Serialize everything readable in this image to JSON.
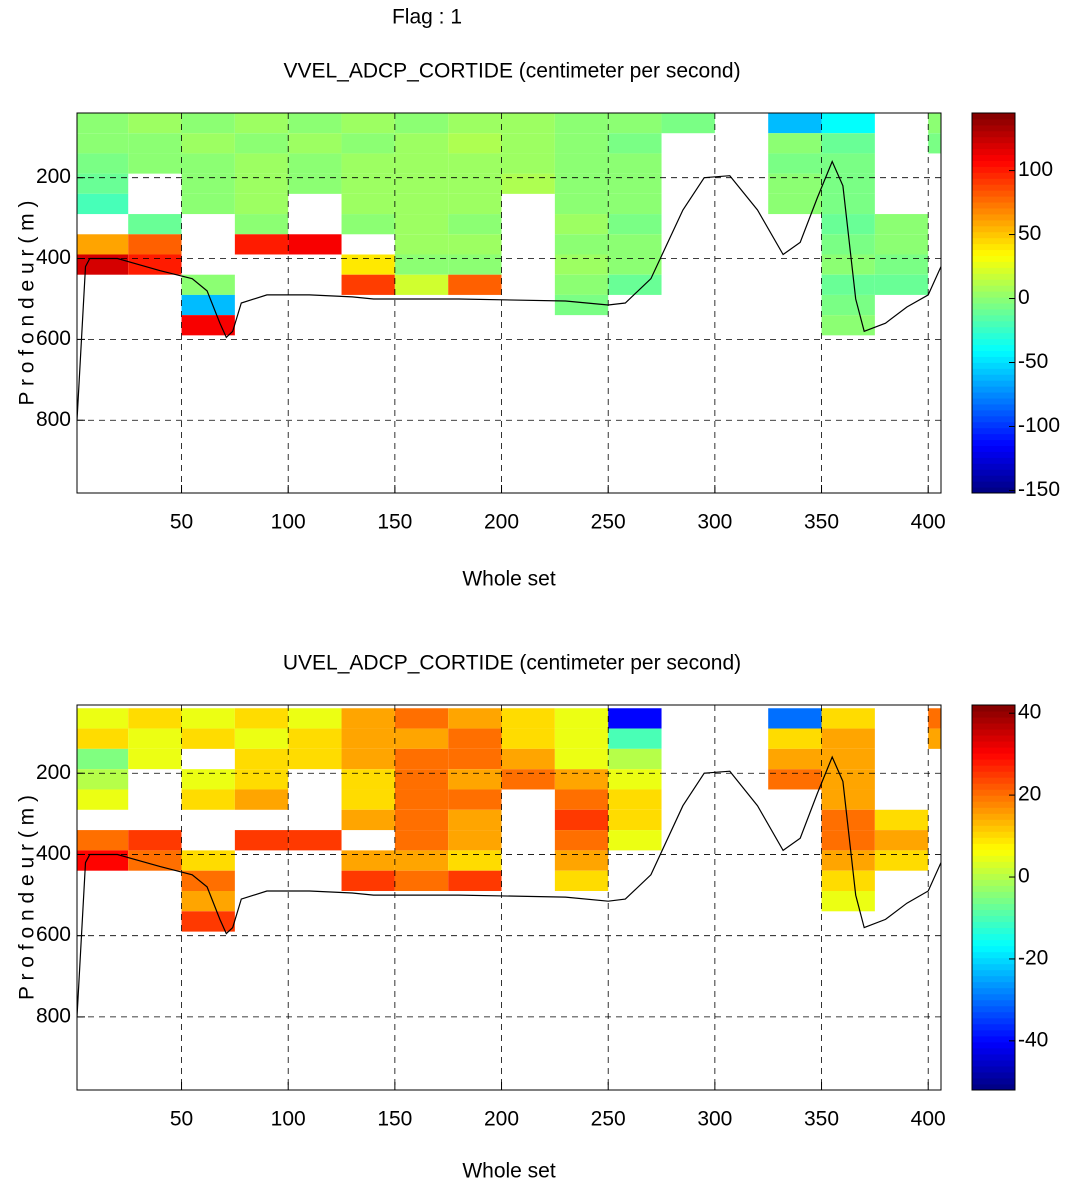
{
  "chart_data": [
    {
      "type": "heatmap",
      "suptitle": "Flag : 1",
      "title": "VVEL_ADCP_CORTIDE (centimeter per second)",
      "xlabel": "Whole set",
      "ylabel": "P r o f o n d e u r   ( m )",
      "xlim": [
        1,
        406
      ],
      "xticks": [
        50,
        100,
        150,
        200,
        250,
        300,
        350,
        400
      ],
      "ylim": [
        40,
        980
      ],
      "y_inverted": true,
      "yticks": [
        200,
        400,
        600,
        800
      ],
      "grid": true,
      "colormap": "jet",
      "clim": [
        -152,
        145
      ],
      "cticks": [
        -150,
        -100,
        -50,
        0,
        50,
        100
      ],
      "cells": {
        "x_edges": [
          0,
          25,
          50,
          75,
          100,
          125,
          150,
          175,
          200,
          225,
          250,
          275,
          300,
          325,
          350,
          375,
          400,
          425
        ],
        "y_edges": [
          40,
          90,
          140,
          190,
          240,
          290,
          340,
          390,
          440,
          490,
          540,
          590
        ],
        "values": [
          [
            0,
            5,
            0,
            5,
            0,
            5,
            0,
            5,
            5,
            0,
            0,
            -5,
            null,
            -60,
            -40,
            null,
            0
          ],
          [
            0,
            0,
            5,
            0,
            5,
            0,
            5,
            10,
            5,
            0,
            -5,
            null,
            null,
            0,
            -10,
            null,
            -5
          ],
          [
            -5,
            0,
            0,
            5,
            0,
            5,
            5,
            5,
            5,
            0,
            0,
            null,
            null,
            -5,
            -5,
            null,
            null
          ],
          [
            -10,
            null,
            0,
            5,
            0,
            5,
            5,
            5,
            10,
            0,
            0,
            null,
            null,
            0,
            -5,
            null,
            null
          ],
          [
            -20,
            null,
            0,
            5,
            null,
            5,
            5,
            5,
            null,
            0,
            0,
            null,
            null,
            0,
            -5,
            null,
            null
          ],
          [
            null,
            -10,
            null,
            0,
            null,
            0,
            5,
            0,
            null,
            5,
            -5,
            null,
            null,
            null,
            -10,
            0,
            null
          ],
          [
            60,
            80,
            null,
            100,
            110,
            null,
            5,
            5,
            null,
            0,
            0,
            null,
            null,
            null,
            -5,
            0,
            null
          ],
          [
            120,
            100,
            null,
            null,
            null,
            40,
            0,
            0,
            null,
            5,
            0,
            null,
            null,
            null,
            0,
            -5,
            null
          ],
          [
            null,
            null,
            0,
            null,
            null,
            90,
            20,
            80,
            null,
            0,
            -10,
            null,
            null,
            null,
            -10,
            -10,
            null
          ],
          [
            null,
            null,
            -60,
            null,
            null,
            null,
            null,
            null,
            null,
            -5,
            null,
            null,
            null,
            null,
            -5,
            null,
            null
          ],
          [
            null,
            null,
            110,
            null,
            null,
            null,
            null,
            null,
            null,
            null,
            null,
            null,
            null,
            null,
            0,
            null,
            null
          ]
        ]
      },
      "profile": {
        "color": "#000000",
        "x": [
          1,
          5,
          7,
          20,
          40,
          55,
          62,
          68,
          71,
          74,
          78,
          90,
          110,
          130,
          140,
          180,
          230,
          250,
          258,
          270,
          285,
          295,
          307,
          320,
          332,
          340,
          348,
          355,
          360,
          366,
          370,
          380,
          390,
          400,
          406
        ],
        "y": [
          800,
          420,
          400,
          400,
          430,
          450,
          480,
          560,
          595,
          580,
          510,
          490,
          490,
          495,
          500,
          500,
          505,
          515,
          510,
          450,
          280,
          200,
          195,
          280,
          390,
          360,
          250,
          160,
          220,
          500,
          580,
          560,
          520,
          490,
          420
        ]
      }
    },
    {
      "type": "heatmap",
      "title": "UVEL_ADCP_CORTIDE (centimeter per second)",
      "xlabel": "Whole set",
      "ylabel": "P r o f o n d e u r   ( m )",
      "xlim": [
        1,
        406
      ],
      "xticks": [
        50,
        100,
        150,
        200,
        250,
        300,
        350,
        400
      ],
      "ylim": [
        32,
        980
      ],
      "y_inverted": true,
      "yticks": [
        200,
        400,
        600,
        800
      ],
      "grid": true,
      "colormap": "jet",
      "clim": [
        -52,
        42
      ],
      "cticks": [
        -40,
        -20,
        0,
        20,
        40
      ],
      "cells": {
        "x_edges": [
          0,
          25,
          50,
          75,
          100,
          125,
          150,
          175,
          200,
          225,
          250,
          275,
          300,
          325,
          350,
          375,
          400,
          425
        ],
        "y_edges": [
          40,
          90,
          140,
          190,
          240,
          290,
          340,
          390,
          440,
          490,
          540,
          590
        ],
        "values": [
          [
            5,
            10,
            5,
            10,
            5,
            15,
            20,
            15,
            10,
            5,
            -40,
            null,
            null,
            -30,
            10,
            null,
            20
          ],
          [
            10,
            5,
            10,
            5,
            10,
            15,
            15,
            20,
            10,
            5,
            -10,
            null,
            null,
            10,
            15,
            null,
            15
          ],
          [
            -5,
            5,
            null,
            10,
            10,
            15,
            20,
            20,
            15,
            5,
            0,
            null,
            null,
            15,
            15,
            null,
            null
          ],
          [
            0,
            null,
            5,
            10,
            null,
            10,
            20,
            15,
            20,
            15,
            5,
            null,
            null,
            20,
            15,
            null,
            null
          ],
          [
            5,
            null,
            10,
            15,
            null,
            10,
            20,
            20,
            null,
            20,
            10,
            null,
            null,
            null,
            15,
            null,
            null
          ],
          [
            null,
            null,
            null,
            null,
            null,
            15,
            20,
            15,
            null,
            25,
            10,
            null,
            null,
            null,
            20,
            10,
            null
          ],
          [
            20,
            25,
            null,
            25,
            25,
            null,
            20,
            15,
            null,
            20,
            5,
            null,
            null,
            null,
            20,
            15,
            null
          ],
          [
            30,
            20,
            10,
            null,
            null,
            15,
            15,
            10,
            null,
            15,
            null,
            null,
            null,
            null,
            15,
            10,
            null
          ],
          [
            null,
            null,
            20,
            null,
            null,
            25,
            20,
            25,
            null,
            10,
            null,
            null,
            null,
            null,
            10,
            null,
            null
          ],
          [
            null,
            null,
            15,
            null,
            null,
            null,
            null,
            null,
            null,
            null,
            null,
            null,
            null,
            null,
            5,
            null,
            null
          ],
          [
            null,
            null,
            25,
            null,
            null,
            null,
            null,
            null,
            null,
            null,
            null,
            null,
            null,
            null,
            null,
            null,
            null
          ]
        ]
      },
      "profile": {
        "color": "#000000",
        "x": [
          1,
          5,
          7,
          20,
          40,
          55,
          62,
          68,
          71,
          74,
          78,
          90,
          110,
          130,
          140,
          180,
          230,
          250,
          258,
          270,
          285,
          295,
          307,
          320,
          332,
          340,
          348,
          355,
          360,
          366,
          370,
          380,
          390,
          400,
          406
        ],
        "y": [
          800,
          420,
          400,
          400,
          430,
          450,
          480,
          560,
          595,
          580,
          510,
          490,
          490,
          495,
          500,
          500,
          505,
          515,
          510,
          450,
          280,
          200,
          195,
          280,
          390,
          360,
          250,
          160,
          220,
          500,
          580,
          560,
          520,
          490,
          420
        ]
      }
    }
  ]
}
